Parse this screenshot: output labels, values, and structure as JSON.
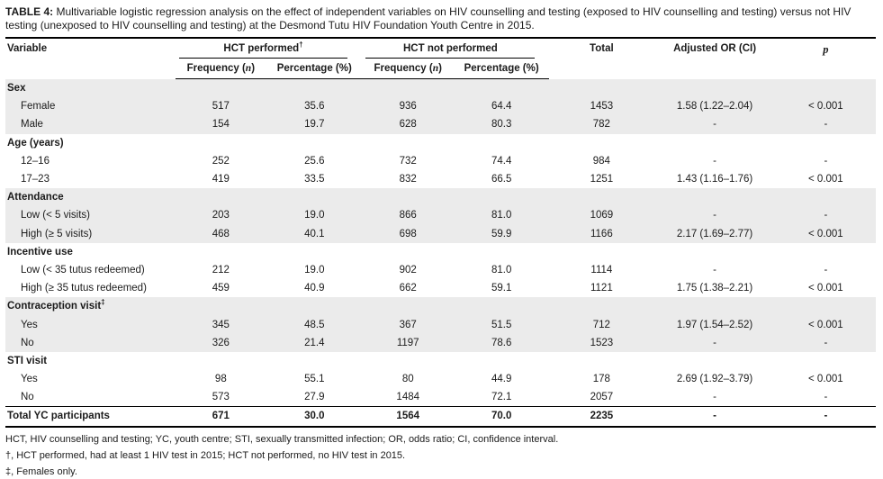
{
  "title": {
    "label": "TABLE 4:",
    "text": "Multivariable logistic regression analysis on the effect of independent variables on HIV counselling and testing (exposed to HIV counselling and testing) versus not HIV testing (unexposed to HIV counselling and testing) at the Desmond Tutu HIV Foundation Youth Centre in 2015."
  },
  "header": {
    "variable": "Variable",
    "group1": "HCT performed",
    "group1_sup": "†",
    "group2": "HCT not performed",
    "freq_prefix": "Frequency (",
    "freq_italic": "n",
    "freq_suffix": ")",
    "pct": "Percentage (%)",
    "total": "Total",
    "adjusted_or": "Adjusted OR (CI)",
    "p": "p"
  },
  "table": {
    "rows": [
      {
        "type": "section",
        "label": "Sex",
        "sup": "",
        "shaded": true
      },
      {
        "type": "data",
        "label": "Female",
        "shaded": true,
        "values": [
          "517",
          "35.6",
          "936",
          "64.4",
          "1453",
          "1.58 (1.22–2.04)",
          "< 0.001"
        ]
      },
      {
        "type": "data",
        "label": "Male",
        "shaded": true,
        "values": [
          "154",
          "19.7",
          "628",
          "80.3",
          "782",
          "-",
          "-"
        ]
      },
      {
        "type": "section",
        "label": "Age (years)",
        "sup": "",
        "shaded": false
      },
      {
        "type": "data",
        "label": "12–16",
        "shaded": false,
        "values": [
          "252",
          "25.6",
          "732",
          "74.4",
          "984",
          "-",
          "-"
        ]
      },
      {
        "type": "data",
        "label": "17–23",
        "shaded": false,
        "values": [
          "419",
          "33.5",
          "832",
          "66.5",
          "1251",
          "1.43 (1.16–1.76)",
          "< 0.001"
        ]
      },
      {
        "type": "section",
        "label": "Attendance",
        "sup": "",
        "shaded": true
      },
      {
        "type": "data",
        "label": "Low (< 5 visits)",
        "shaded": true,
        "values": [
          "203",
          "19.0",
          "866",
          "81.0",
          "1069",
          "-",
          "-"
        ]
      },
      {
        "type": "data",
        "label": "High (≥ 5 visits)",
        "shaded": true,
        "values": [
          "468",
          "40.1",
          "698",
          "59.9",
          "1166",
          "2.17 (1.69–2.77)",
          "< 0.001"
        ]
      },
      {
        "type": "section",
        "label": "Incentive use",
        "sup": "",
        "shaded": false
      },
      {
        "type": "data",
        "label": "Low (< 35 tutus redeemed)",
        "shaded": false,
        "values": [
          "212",
          "19.0",
          "902",
          "81.0",
          "1114",
          "-",
          "-"
        ]
      },
      {
        "type": "data",
        "label": "High (≥ 35 tutus redeemed)",
        "shaded": false,
        "values": [
          "459",
          "40.9",
          "662",
          "59.1",
          "1121",
          "1.75 (1.38–2.21)",
          "< 0.001"
        ]
      },
      {
        "type": "section",
        "label": "Contraception visit",
        "sup": "‡",
        "shaded": true
      },
      {
        "type": "data",
        "label": "Yes",
        "shaded": true,
        "values": [
          "345",
          "48.5",
          "367",
          "51.5",
          "712",
          "1.97 (1.54–2.52)",
          "< 0.001"
        ]
      },
      {
        "type": "data",
        "label": "No",
        "shaded": true,
        "values": [
          "326",
          "21.4",
          "1197",
          "78.6",
          "1523",
          "-",
          "-"
        ]
      },
      {
        "type": "section",
        "label": "STI visit",
        "sup": "",
        "shaded": false
      },
      {
        "type": "data",
        "label": "Yes",
        "shaded": false,
        "values": [
          "98",
          "55.1",
          "80",
          "44.9",
          "178",
          "2.69 (1.92–3.79)",
          "< 0.001"
        ]
      },
      {
        "type": "data",
        "label": "No",
        "shaded": false,
        "values": [
          "573",
          "27.9",
          "1484",
          "72.1",
          "2057",
          "-",
          "-"
        ]
      },
      {
        "type": "total",
        "label": "Total YC participants",
        "shaded": false,
        "values": [
          "671",
          "30.0",
          "1564",
          "70.0",
          "2235",
          "-",
          "-"
        ]
      }
    ]
  },
  "footnotes": [
    "HCT, HIV counselling and testing; YC, youth centre; STI, sexually transmitted infection; OR, odds ratio; CI, confidence interval.",
    "†, HCT performed, had at least 1 HIV test in 2015; HCT not performed, no HIV test in 2015.",
    "‡, Females only."
  ]
}
